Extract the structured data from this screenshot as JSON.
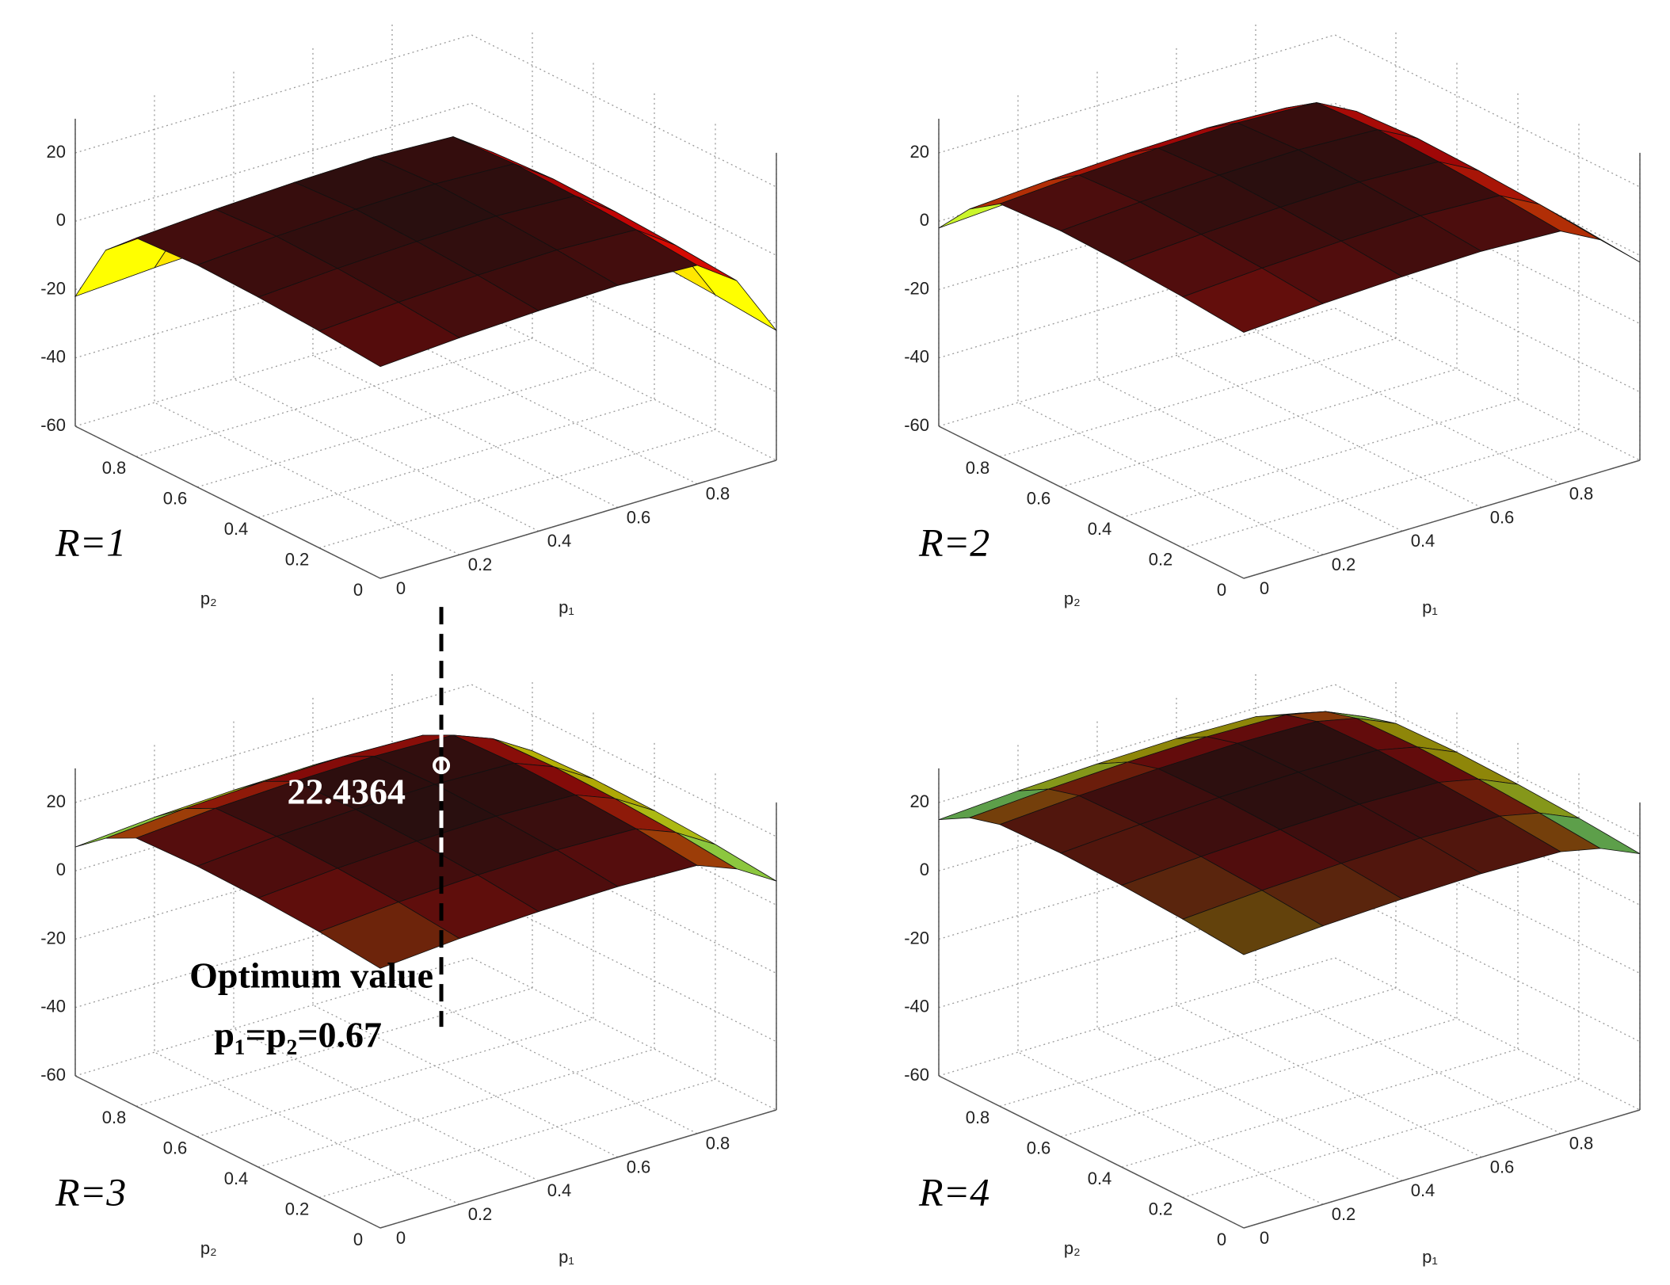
{
  "chart_data": [
    {
      "type": "surface",
      "panel_label": "R=1",
      "xlabel": "p₁",
      "ylabel": "p₂",
      "colormap": "jet",
      "x": [
        0,
        0.2,
        0.4,
        0.6,
        0.8,
        0.9,
        1
      ],
      "y": [
        0,
        0.2,
        0.4,
        0.6,
        0.8,
        0.9,
        1
      ],
      "z": [
        [
          2,
          3.5,
          4.5,
          5,
          4,
          -4,
          -22
        ],
        [
          3.5,
          5,
          6,
          6.5,
          5.5,
          -2.5,
          -20.5
        ],
        [
          4.5,
          6,
          7,
          7.5,
          6.5,
          -1.5,
          -19.5
        ],
        [
          5,
          6.5,
          7.5,
          8,
          7,
          -1,
          -19
        ],
        [
          4,
          5.5,
          6.5,
          7,
          6,
          -2,
          -20
        ],
        [
          -4,
          -2.5,
          -1.5,
          -1,
          -2,
          -10,
          -28
        ],
        [
          -22,
          -20.5,
          -19.5,
          -19,
          -20,
          -28,
          -46
        ]
      ],
      "xlim": [
        0,
        1
      ],
      "ylim": [
        0,
        1
      ],
      "zlim": [
        -60,
        30
      ],
      "xticks": [
        0,
        0.2,
        0.4,
        0.6,
        0.8
      ],
      "yticks": [
        0,
        0.2,
        0.4,
        0.6,
        0.8
      ],
      "zticks": [
        -60,
        -40,
        -20,
        0,
        20
      ],
      "grid": true
    },
    {
      "type": "surface",
      "panel_label": "R=2",
      "xlabel": "p₁",
      "ylabel": "p₂",
      "colormap": "jet",
      "x": [
        0,
        0.2,
        0.4,
        0.6,
        0.8,
        0.9,
        1
      ],
      "y": [
        0,
        0.2,
        0.4,
        0.6,
        0.8,
        0.9,
        1
      ],
      "z": [
        [
          12,
          13.5,
          14.5,
          15,
          14,
          8,
          -2
        ],
        [
          13.5,
          15,
          16,
          16.5,
          15.5,
          9.5,
          -0.5
        ],
        [
          14.5,
          16,
          17,
          17.5,
          16.5,
          10.5,
          0.5
        ],
        [
          15,
          16.5,
          17.5,
          18,
          17,
          11,
          1
        ],
        [
          14,
          15.5,
          16.5,
          17,
          16,
          10,
          0
        ],
        [
          8,
          9.5,
          10.5,
          11,
          10,
          4,
          -6
        ],
        [
          -2,
          -0.5,
          0.5,
          1,
          0,
          -6,
          -16
        ]
      ],
      "xlim": [
        0,
        1
      ],
      "ylim": [
        0,
        1
      ],
      "zlim": [
        -60,
        30
      ],
      "xticks": [
        0,
        0.2,
        0.4,
        0.6,
        0.8
      ],
      "yticks": [
        0,
        0.2,
        0.4,
        0.6,
        0.8
      ],
      "zticks": [
        -60,
        -40,
        -20,
        0,
        20
      ],
      "grid": true
    },
    {
      "type": "surface",
      "panel_label": "R=3",
      "xlabel": "p₁",
      "ylabel": "p₂",
      "colormap": "jet",
      "x": [
        0,
        0.2,
        0.4,
        0.6,
        0.8,
        0.9,
        1
      ],
      "y": [
        0,
        0.2,
        0.4,
        0.6,
        0.8,
        0.9,
        1
      ],
      "z": [
        [
          16,
          17.8,
          18.8,
          19.2,
          18.5,
          14,
          7
        ],
        [
          17.8,
          19.6,
          20.6,
          21,
          20.3,
          15.8,
          8.8
        ],
        [
          18.8,
          20.6,
          21.6,
          22,
          21.3,
          16.8,
          9.8
        ],
        [
          19.2,
          21,
          22,
          22.4,
          21.7,
          17.2,
          10.2
        ],
        [
          18.5,
          20.3,
          21.3,
          21.7,
          21,
          16.5,
          9.5
        ],
        [
          14,
          15.8,
          16.8,
          17.2,
          16.5,
          12,
          5
        ],
        [
          7,
          8.8,
          9.8,
          10.2,
          9.5,
          5,
          -2
        ]
      ],
      "xlim": [
        0,
        1
      ],
      "ylim": [
        0,
        1
      ],
      "zlim": [
        -60,
        30
      ],
      "xticks": [
        0,
        0.2,
        0.4,
        0.6,
        0.8
      ],
      "yticks": [
        0,
        0.2,
        0.4,
        0.6,
        0.8
      ],
      "zticks": [
        -60,
        -40,
        -20,
        0,
        20
      ],
      "grid": true,
      "optimum": {
        "x": 0.67,
        "y": 0.67,
        "z": 22.4364
      },
      "annotations": [
        "22.4364",
        "Optimum value",
        "p₁=p₂=0.67"
      ]
    },
    {
      "type": "surface",
      "panel_label": "R=4",
      "xlabel": "p₁",
      "ylabel": "p₂",
      "colormap": "jet",
      "x": [
        0,
        0.2,
        0.4,
        0.6,
        0.8,
        0.9,
        1
      ],
      "y": [
        0,
        0.2,
        0.4,
        0.6,
        0.8,
        0.9,
        1
      ],
      "z": [
        [
          20,
          21.5,
          22.5,
          23,
          22.5,
          20,
          15
        ],
        [
          21.5,
          23,
          24,
          24.5,
          24,
          21.5,
          16.5
        ],
        [
          22.5,
          24,
          25,
          25.5,
          25,
          22.5,
          17.5
        ],
        [
          23,
          24.5,
          25.5,
          26,
          25.5,
          23,
          18
        ],
        [
          22.5,
          24,
          25,
          25.5,
          25,
          22.5,
          17.5
        ],
        [
          20,
          21.5,
          22.5,
          23,
          22.5,
          20,
          15
        ],
        [
          15,
          16.5,
          17.5,
          18,
          17.5,
          15,
          10
        ]
      ],
      "xlim": [
        0,
        1
      ],
      "ylim": [
        0,
        1
      ],
      "zlim": [
        -60,
        30
      ],
      "xticks": [
        0,
        0.2,
        0.4,
        0.6,
        0.8
      ],
      "yticks": [
        0,
        0.2,
        0.4,
        0.6,
        0.8
      ],
      "zticks": [
        -60,
        -40,
        -20,
        0,
        20
      ],
      "grid": true
    }
  ]
}
